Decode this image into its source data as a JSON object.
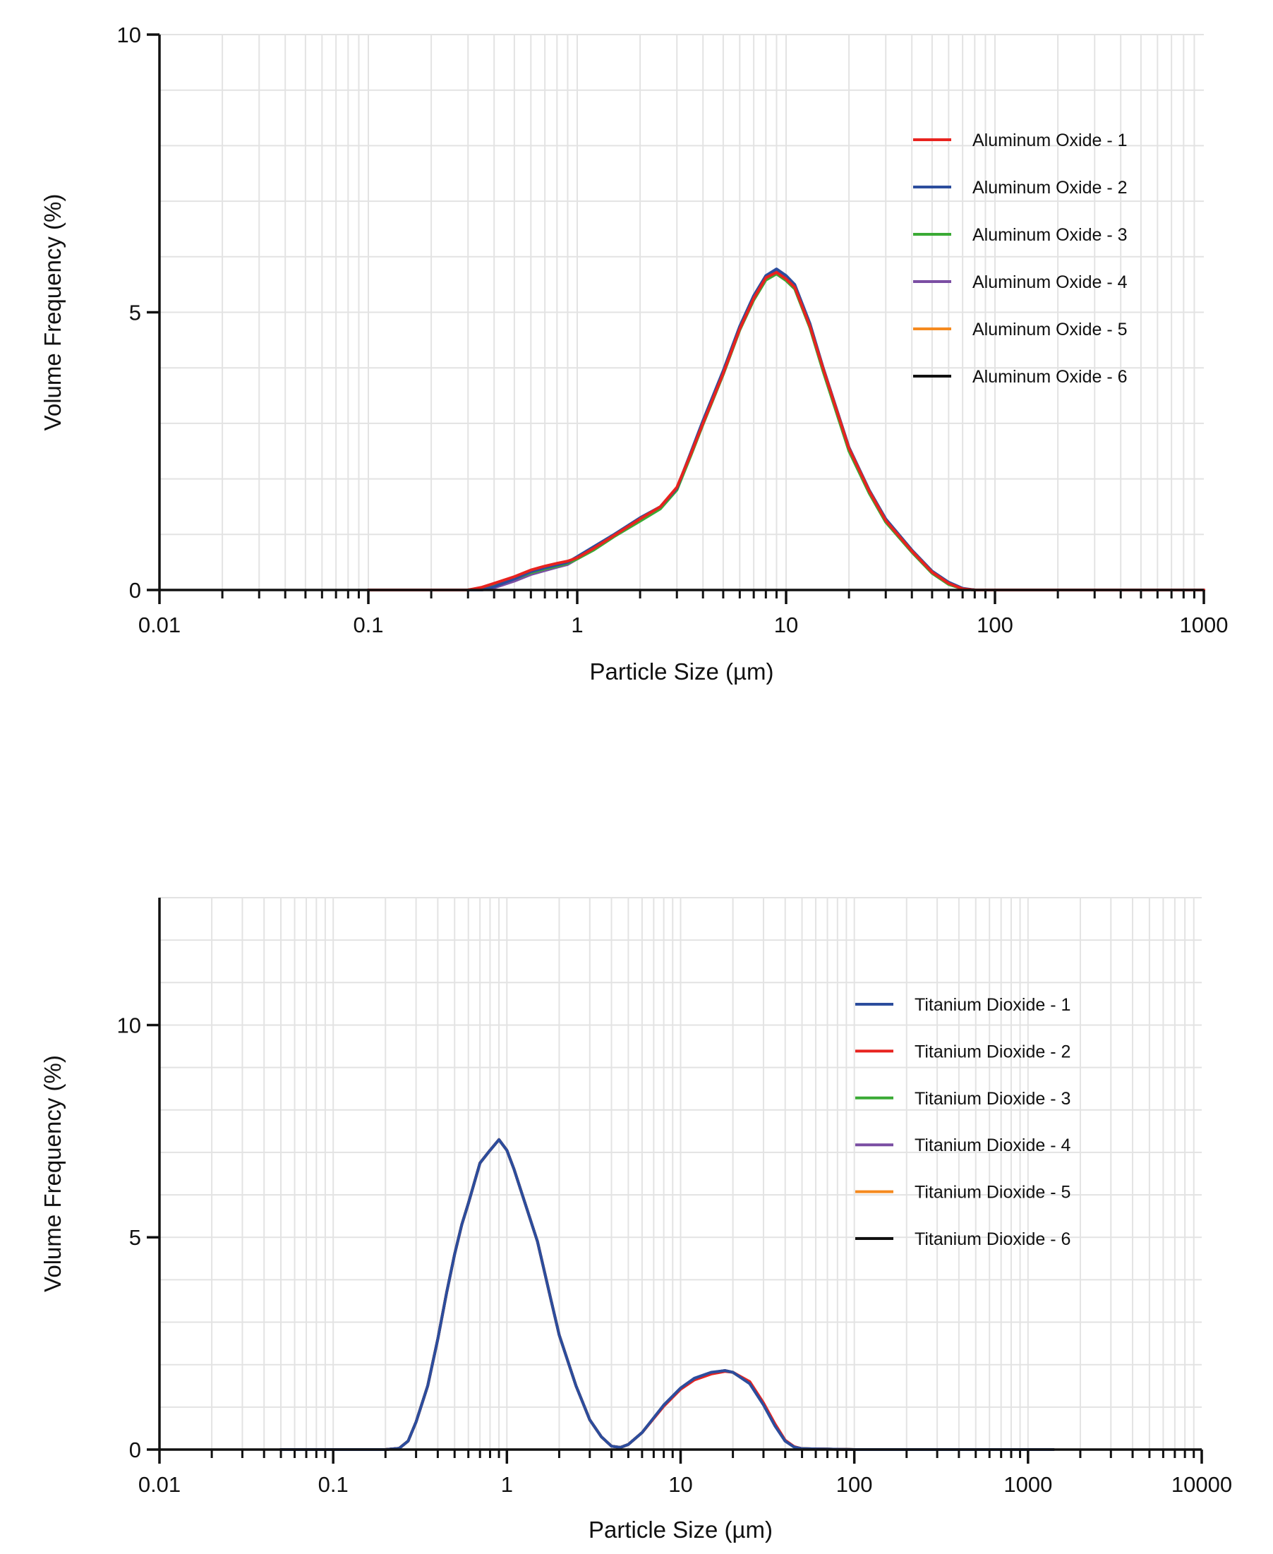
{
  "chart_data": [
    {
      "type": "line",
      "title": "",
      "xlabel": "Particle Size (µm)",
      "ylabel": "Volume Frequency (%)",
      "x_scale": "log",
      "xlim": [
        0.01,
        1000
      ],
      "ylim": [
        0,
        10
      ],
      "x_ticks": [
        0.01,
        0.1,
        1,
        10,
        100,
        1000
      ],
      "x_tick_labels": [
        "0.01",
        "0.1",
        "1",
        "10",
        "100",
        "1000"
      ],
      "y_ticks": [
        0,
        5,
        10
      ],
      "y_tick_labels": [
        "0",
        "5",
        "10"
      ],
      "grid": true,
      "legend_position": "top-right",
      "x": [
        0.1,
        0.2,
        0.25,
        0.3,
        0.35,
        0.4,
        0.5,
        0.6,
        0.7,
        0.8,
        0.9,
        1.0,
        1.2,
        1.5,
        2.0,
        2.5,
        3.0,
        3.5,
        4.0,
        5.0,
        6.0,
        7.0,
        8.0,
        9.0,
        10.0,
        11.0,
        13.0,
        15.0,
        20.0,
        25.0,
        30.0,
        40.0,
        50.0,
        60.0,
        70.0,
        80.0,
        100.0,
        200.0,
        500.0,
        1000.0
      ],
      "series": [
        {
          "name": "Aluminum Oxide - 1",
          "color": "#e8231f",
          "values": [
            0,
            0,
            0,
            0,
            0.05,
            0.12,
            0.24,
            0.36,
            0.43,
            0.48,
            0.52,
            0.58,
            0.75,
            0.98,
            1.28,
            1.5,
            1.85,
            2.45,
            3.0,
            3.9,
            4.7,
            5.25,
            5.62,
            5.72,
            5.6,
            5.45,
            4.75,
            4.0,
            2.55,
            1.78,
            1.25,
            0.7,
            0.32,
            0.12,
            0.02,
            0,
            0,
            0,
            0,
            0
          ]
        },
        {
          "name": "Aluminum Oxide - 2",
          "color": "#2c4d9d",
          "values": [
            0,
            0,
            0,
            0,
            0,
            0.06,
            0.2,
            0.33,
            0.4,
            0.45,
            0.5,
            0.6,
            0.78,
            1.0,
            1.3,
            1.5,
            1.83,
            2.48,
            3.05,
            3.95,
            4.75,
            5.3,
            5.66,
            5.78,
            5.66,
            5.5,
            4.8,
            4.02,
            2.57,
            1.8,
            1.28,
            0.72,
            0.34,
            0.14,
            0.03,
            0,
            0,
            0,
            0,
            0
          ]
        },
        {
          "name": "Aluminum Oxide - 3",
          "color": "#3aaa35",
          "values": [
            0,
            0,
            0,
            0,
            0.02,
            0.08,
            0.2,
            0.31,
            0.38,
            0.43,
            0.48,
            0.56,
            0.72,
            0.96,
            1.24,
            1.46,
            1.8,
            2.42,
            2.98,
            3.88,
            4.68,
            5.22,
            5.58,
            5.69,
            5.57,
            5.42,
            4.72,
            3.95,
            2.5,
            1.74,
            1.22,
            0.68,
            0.3,
            0.1,
            0.02,
            0,
            0,
            0,
            0,
            0
          ]
        },
        {
          "name": "Aluminum Oxide - 4",
          "color": "#7b4ea3",
          "values": [
            0,
            0,
            0,
            0,
            0,
            0.04,
            0.16,
            0.28,
            0.35,
            0.41,
            0.46,
            0.56,
            0.74,
            0.97,
            1.27,
            1.49,
            1.84,
            2.46,
            3.02,
            3.92,
            4.72,
            5.27,
            5.64,
            5.75,
            5.63,
            5.47,
            4.77,
            3.99,
            2.54,
            1.77,
            1.25,
            0.7,
            0.32,
            0.12,
            0.02,
            0,
            0,
            0,
            0,
            0
          ]
        },
        {
          "name": "Aluminum Oxide - 5",
          "color": "#f58a1f",
          "values": [
            0,
            0,
            0,
            0,
            0.03,
            0.1,
            0.22,
            0.34,
            0.41,
            0.46,
            0.5,
            0.57,
            0.74,
            0.97,
            1.27,
            1.49,
            1.84,
            2.44,
            2.99,
            3.89,
            4.69,
            5.24,
            5.61,
            5.71,
            5.59,
            5.44,
            4.74,
            3.98,
            2.53,
            1.76,
            1.24,
            0.69,
            0.31,
            0.11,
            0.02,
            0,
            0,
            0,
            0,
            0
          ]
        },
        {
          "name": "Aluminum Oxide - 6",
          "color": "#111111",
          "values": [
            0,
            0,
            0,
            0,
            0.03,
            0.1,
            0.22,
            0.34,
            0.41,
            0.46,
            0.5,
            0.57,
            0.74,
            0.97,
            1.27,
            1.49,
            1.84,
            2.44,
            2.99,
            3.89,
            4.69,
            5.24,
            5.61,
            5.71,
            5.59,
            5.44,
            4.74,
            3.98,
            2.53,
            1.76,
            1.24,
            0.69,
            0.31,
            0.11,
            0.02,
            0,
            0,
            0,
            0,
            0
          ]
        }
      ],
      "draw_order": [
        5,
        4,
        3,
        2,
        1,
        0
      ]
    },
    {
      "type": "line",
      "title": "",
      "xlabel": "Particle Size (µm)",
      "ylabel": "Volume Frequency (%)",
      "x_scale": "log",
      "xlim": [
        0.01,
        10000
      ],
      "ylim": [
        0,
        13
      ],
      "x_ticks": [
        0.01,
        0.1,
        1,
        10,
        100,
        1000,
        10000
      ],
      "x_tick_labels": [
        "0.01",
        "0.1",
        "1",
        "10",
        "100",
        "1000",
        "10000"
      ],
      "y_ticks": [
        0,
        5,
        10
      ],
      "y_tick_labels": [
        "0",
        "5",
        "10"
      ],
      "grid": true,
      "legend_position": "top-right",
      "x": [
        0.05,
        0.1,
        0.2,
        0.24,
        0.27,
        0.3,
        0.35,
        0.4,
        0.45,
        0.5,
        0.55,
        0.6,
        0.7,
        0.8,
        0.9,
        1.0,
        1.1,
        1.25,
        1.5,
        1.8,
        2.0,
        2.5,
        3.0,
        3.5,
        4.0,
        4.5,
        5.0,
        6.0,
        8.0,
        10.0,
        12.0,
        15.0,
        18.0,
        20.0,
        25.0,
        30.0,
        35.0,
        40.0,
        45.0,
        50.0,
        100.0,
        1000.0,
        1400.0
      ],
      "series": [
        {
          "name": "Titanium Dioxide - 1",
          "color": "#2c4d9d",
          "values": [
            0,
            0,
            0,
            0.03,
            0.2,
            0.65,
            1.5,
            2.6,
            3.7,
            4.6,
            5.3,
            5.8,
            6.75,
            7.05,
            7.3,
            7.05,
            6.6,
            5.9,
            4.9,
            3.5,
            2.7,
            1.5,
            0.7,
            0.3,
            0.08,
            0.05,
            0.12,
            0.4,
            1.05,
            1.45,
            1.68,
            1.82,
            1.86,
            1.82,
            1.55,
            1.05,
            0.55,
            0.2,
            0.06,
            0.02,
            0,
            0,
            0
          ]
        },
        {
          "name": "Titanium Dioxide - 2",
          "color": "#e8231f",
          "values": [
            0,
            0,
            0,
            0.03,
            0.2,
            0.65,
            1.5,
            2.6,
            3.7,
            4.6,
            5.3,
            5.8,
            6.75,
            7.05,
            7.3,
            7.05,
            6.6,
            5.9,
            4.9,
            3.5,
            2.7,
            1.5,
            0.7,
            0.3,
            0.08,
            0.05,
            0.12,
            0.4,
            1.02,
            1.42,
            1.64,
            1.78,
            1.84,
            1.82,
            1.6,
            1.1,
            0.6,
            0.22,
            0.07,
            0.02,
            0,
            0,
            0
          ]
        },
        {
          "name": "Titanium Dioxide - 3",
          "color": "#3aaa35",
          "values": [
            0,
            0,
            0,
            0.03,
            0.2,
            0.65,
            1.5,
            2.6,
            3.7,
            4.6,
            5.3,
            5.8,
            6.75,
            7.05,
            7.3,
            7.05,
            6.6,
            5.9,
            4.9,
            3.5,
            2.7,
            1.5,
            0.7,
            0.3,
            0.08,
            0.05,
            0.12,
            0.4,
            1.03,
            1.43,
            1.66,
            1.8,
            1.85,
            1.82,
            1.57,
            1.07,
            0.57,
            0.21,
            0.06,
            0.02,
            0,
            0,
            0
          ]
        },
        {
          "name": "Titanium Dioxide - 4",
          "color": "#7b4ea3",
          "values": [
            0,
            0,
            0,
            0.03,
            0.2,
            0.65,
            1.5,
            2.6,
            3.7,
            4.6,
            5.3,
            5.8,
            6.75,
            7.05,
            7.3,
            7.05,
            6.6,
            5.9,
            4.9,
            3.5,
            2.7,
            1.5,
            0.7,
            0.3,
            0.08,
            0.05,
            0.12,
            0.4,
            1.04,
            1.44,
            1.67,
            1.81,
            1.86,
            1.82,
            1.56,
            1.06,
            0.56,
            0.2,
            0.06,
            0.02,
            0,
            0,
            0
          ]
        },
        {
          "name": "Titanium Dioxide - 5",
          "color": "#f58a1f",
          "values": [
            0,
            0,
            0,
            0.03,
            0.2,
            0.65,
            1.5,
            2.6,
            3.7,
            4.6,
            5.3,
            5.8,
            6.75,
            7.05,
            7.3,
            7.05,
            6.6,
            5.9,
            4.9,
            3.5,
            2.7,
            1.5,
            0.7,
            0.3,
            0.08,
            0.05,
            0.12,
            0.4,
            1.04,
            1.44,
            1.67,
            1.81,
            1.86,
            1.82,
            1.56,
            1.06,
            0.56,
            0.2,
            0.06,
            0.02,
            0,
            0,
            0
          ]
        },
        {
          "name": "Titanium Dioxide - 6",
          "color": "#111111",
          "values": [
            0,
            0,
            0,
            0.03,
            0.2,
            0.65,
            1.5,
            2.6,
            3.7,
            4.6,
            5.3,
            5.8,
            6.75,
            7.05,
            7.3,
            7.05,
            6.6,
            5.9,
            4.9,
            3.5,
            2.7,
            1.5,
            0.7,
            0.3,
            0.08,
            0.05,
            0.12,
            0.4,
            1.04,
            1.44,
            1.67,
            1.81,
            1.86,
            1.82,
            1.56,
            1.06,
            0.56,
            0.2,
            0.06,
            0.02,
            0,
            0,
            0
          ]
        }
      ],
      "draw_order": [
        5,
        4,
        3,
        2,
        1,
        0
      ]
    }
  ]
}
